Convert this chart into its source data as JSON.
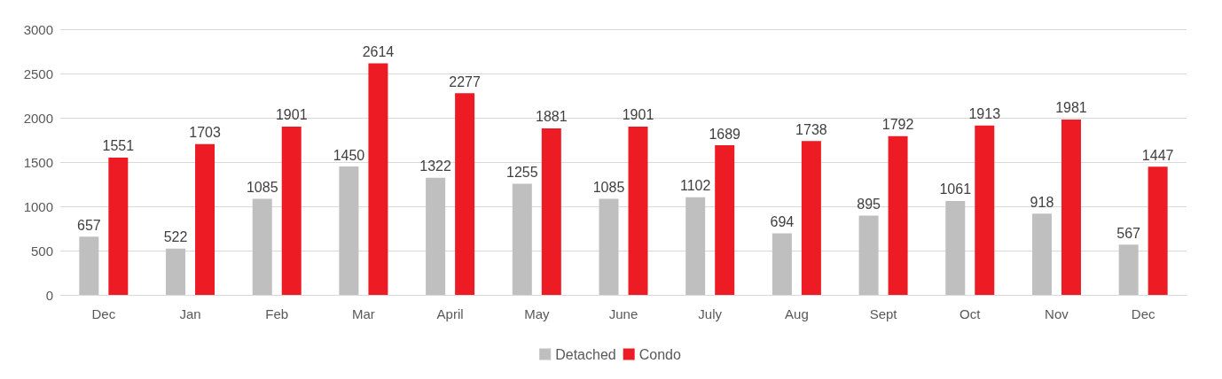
{
  "chart_data": {
    "type": "bar",
    "categories": [
      "Dec",
      "Jan",
      "Feb",
      "Mar",
      "April",
      "May",
      "June",
      "July",
      "Aug",
      "Sept",
      "Oct",
      "Nov",
      "Dec"
    ],
    "series": [
      {
        "name": "Detached",
        "color": "#bfbfbf",
        "values": [
          657,
          522,
          1085,
          1450,
          1322,
          1255,
          1085,
          1102,
          694,
          895,
          1061,
          918,
          567
        ]
      },
      {
        "name": "Condo",
        "color": "#ed1c24",
        "values": [
          1551,
          1703,
          1901,
          2614,
          2277,
          1881,
          1901,
          1689,
          1738,
          1792,
          1913,
          1981,
          1447
        ]
      }
    ],
    "ylim": [
      0,
      3000
    ],
    "yticks": [
      0,
      500,
      1000,
      1500,
      2000,
      2500,
      3000
    ],
    "grid": "y",
    "legend": "bottom",
    "data_labels": true
  }
}
